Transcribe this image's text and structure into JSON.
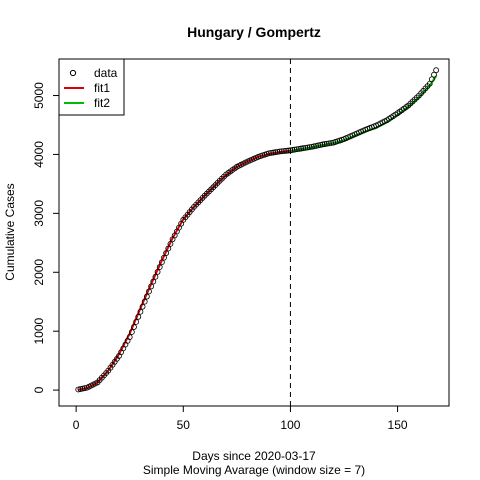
{
  "chart_data": {
    "type": "line",
    "title": "Hungary / Gompertz",
    "xlabel": "Days since 2020-03-17",
    "xlabel_sub": "Simple Moving Avarage (window size = 7)",
    "ylabel": "Cumulative Cases",
    "xlim": [
      -8,
      174
    ],
    "ylim": [
      -270,
      5620
    ],
    "x_ticks": [
      0,
      50,
      100,
      150
    ],
    "y_ticks": [
      0,
      1000,
      2000,
      3000,
      4000,
      5000
    ],
    "vline": 100,
    "legend_position": "top-left",
    "legend": [
      {
        "label": "data",
        "kind": "point",
        "color": "#000000"
      },
      {
        "label": "fit1",
        "kind": "line",
        "color": "#dd0000"
      },
      {
        "label": "fit2",
        "kind": "line",
        "color": "#00bb00"
      }
    ],
    "data_keypoints": [
      [
        1,
        10
      ],
      [
        5,
        40
      ],
      [
        10,
        130
      ],
      [
        15,
        330
      ],
      [
        20,
        580
      ],
      [
        25,
        900
      ],
      [
        30,
        1330
      ],
      [
        35,
        1760
      ],
      [
        40,
        2170
      ],
      [
        45,
        2560
      ],
      [
        50,
        2890
      ],
      [
        55,
        3110
      ],
      [
        60,
        3300
      ],
      [
        65,
        3480
      ],
      [
        70,
        3660
      ],
      [
        75,
        3790
      ],
      [
        80,
        3880
      ],
      [
        85,
        3960
      ],
      [
        90,
        4020
      ],
      [
        95,
        4050
      ],
      [
        100,
        4070
      ],
      [
        105,
        4100
      ],
      [
        110,
        4130
      ],
      [
        115,
        4170
      ],
      [
        120,
        4200
      ],
      [
        125,
        4260
      ],
      [
        130,
        4340
      ],
      [
        135,
        4420
      ],
      [
        140,
        4490
      ],
      [
        145,
        4580
      ],
      [
        150,
        4700
      ],
      [
        155,
        4830
      ],
      [
        160,
        5000
      ],
      [
        165,
        5200
      ],
      [
        168,
        5430
      ]
    ],
    "fit1_keypoints": [
      [
        1,
        5
      ],
      [
        5,
        35
      ],
      [
        10,
        130
      ],
      [
        15,
        330
      ],
      [
        20,
        610
      ],
      [
        25,
        960
      ],
      [
        30,
        1390
      ],
      [
        35,
        1800
      ],
      [
        40,
        2200
      ],
      [
        45,
        2580
      ],
      [
        50,
        2900
      ],
      [
        55,
        3110
      ],
      [
        60,
        3300
      ],
      [
        65,
        3480
      ],
      [
        70,
        3650
      ],
      [
        75,
        3790
      ],
      [
        80,
        3880
      ],
      [
        85,
        3960
      ],
      [
        90,
        4010
      ],
      [
        95,
        4040
      ],
      [
        100,
        4060
      ]
    ],
    "fit2_keypoints": [
      [
        100,
        4060
      ],
      [
        105,
        4090
      ],
      [
        110,
        4120
      ],
      [
        115,
        4160
      ],
      [
        120,
        4190
      ],
      [
        125,
        4240
      ],
      [
        130,
        4320
      ],
      [
        135,
        4390
      ],
      [
        140,
        4450
      ],
      [
        145,
        4550
      ],
      [
        150,
        4670
      ],
      [
        155,
        4810
      ],
      [
        160,
        4970
      ],
      [
        165,
        5170
      ],
      [
        168,
        5330
      ]
    ]
  }
}
